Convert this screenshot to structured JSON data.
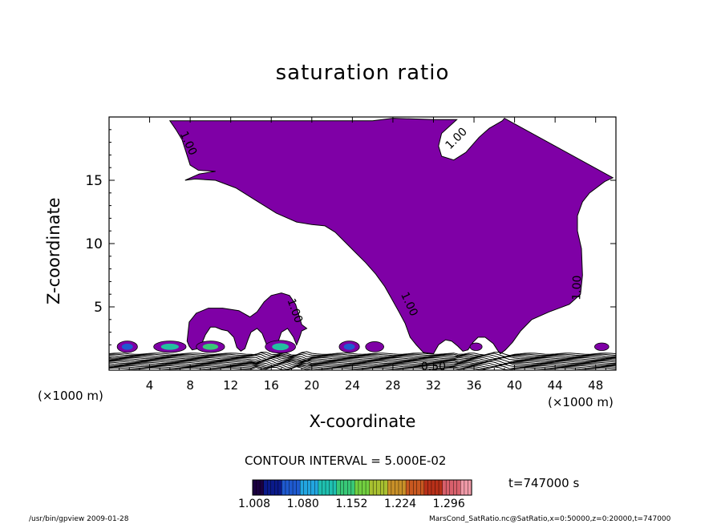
{
  "title": "saturation ratio",
  "ylabel": "Z-coordinate",
  "xlabel": "X-coordinate",
  "x_unit_left": "(×1000 m)",
  "x_unit_right": "(×1000 m)",
  "contour_interval": "CONTOUR INTERVAL = 5.000E-02",
  "time_label": "t=747000 s",
  "footer_left": "/usr/bin/gpview  2009-01-28",
  "footer_right": "MarsCond_SatRatio.nc@SatRatio,x=0:50000,z=0:20000,t=747000",
  "colorbar": {
    "ticks": [
      "1.008",
      "1.080",
      "1.152",
      "1.224",
      "1.296"
    ],
    "min": 1.008,
    "max": 1.332,
    "colors": [
      "#1a0040",
      "#0a1a8a",
      "#1e5ad0",
      "#22a6e0",
      "#1fc0b0",
      "#38c878",
      "#72d040",
      "#a8c030",
      "#c89028",
      "#c85820",
      "#b83018",
      "#d8606c",
      "#f09aa8"
    ]
  },
  "contour_labels": [
    "1.00",
    "1.00",
    "1.00",
    "1.00",
    "1.00",
    "0.50"
  ],
  "chart_data": {
    "type": "contour",
    "title": "saturation ratio",
    "xlabel": "X-coordinate",
    "ylabel": "Z-coordinate",
    "x_unit": "(×1000 m)",
    "xlim": [
      0,
      50
    ],
    "ylim": [
      0,
      20
    ],
    "x_ticks": [
      4,
      8,
      12,
      16,
      20,
      24,
      28,
      32,
      36,
      40,
      44,
      48
    ],
    "y_ticks": [
      5,
      10,
      15
    ],
    "contour_interval": 0.05,
    "shading_threshold": 1.0,
    "fill_color": "#7f00a6",
    "labelled_levels": [
      1.0,
      0.5
    ],
    "time": "t=747000 s"
  }
}
